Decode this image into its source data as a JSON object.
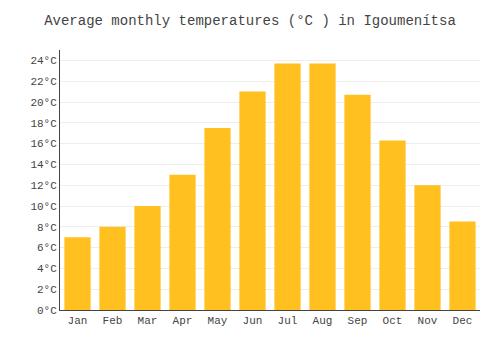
{
  "chart_data": {
    "type": "bar",
    "title": "Average monthly temperatures (°C ) in Igoumenítsa",
    "categories": [
      "Jan",
      "Feb",
      "Mar",
      "Apr",
      "May",
      "Jun",
      "Jul",
      "Aug",
      "Sep",
      "Oct",
      "Nov",
      "Dec"
    ],
    "values": [
      7.0,
      8.0,
      10.0,
      13.0,
      17.5,
      21.0,
      23.7,
      23.7,
      20.7,
      16.3,
      12.0,
      8.5
    ],
    "color": "#FFC020",
    "ylim": [
      0,
      25
    ],
    "yticks": [
      {
        "value": 0,
        "label": "0°C"
      },
      {
        "value": 2,
        "label": "2°C"
      },
      {
        "value": 4,
        "label": "4°C"
      },
      {
        "value": 6,
        "label": "6°C"
      },
      {
        "value": 8,
        "label": "8°C"
      },
      {
        "value": 10,
        "label": "10°C"
      },
      {
        "value": 12,
        "label": "12°C"
      },
      {
        "value": 14,
        "label": "14°C"
      },
      {
        "value": 16,
        "label": "16°C"
      },
      {
        "value": 18,
        "label": "18°C"
      },
      {
        "value": 20,
        "label": "20°C"
      },
      {
        "value": 22,
        "label": "22°C"
      },
      {
        "value": 24,
        "label": "24°C"
      }
    ],
    "grid": true
  }
}
